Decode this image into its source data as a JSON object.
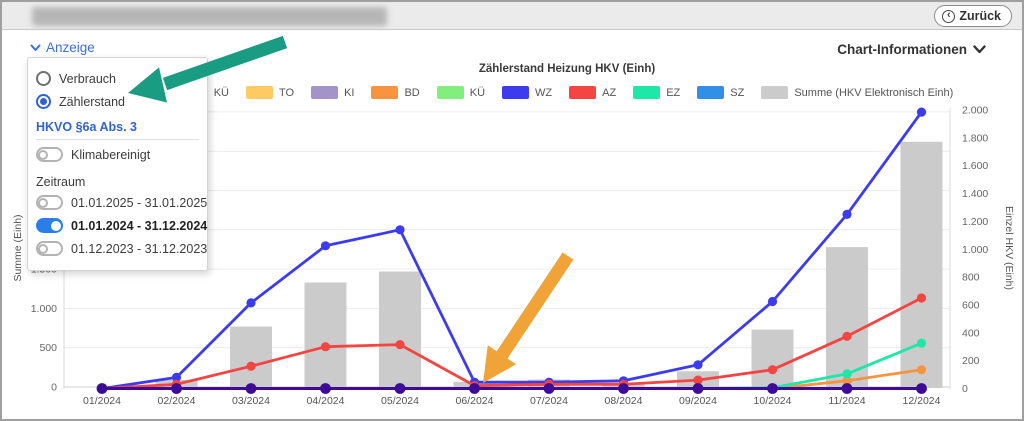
{
  "top_bar": {
    "title_redacted": true,
    "back_label": "Zurück"
  },
  "toolbar": {
    "anzeige_label": "Anzeige",
    "chart_info_label": "Chart-Informationen"
  },
  "anzeige_panel": {
    "radio_options": [
      {
        "label": "Verbrauch",
        "selected": false
      },
      {
        "label": "Zählerstand",
        "selected": true
      }
    ],
    "section_heading": "HKVO §6a Abs. 3",
    "klimabereinigt": {
      "label": "Klimabereinigt",
      "enabled": false
    },
    "zeitraum_label": "Zeitraum",
    "zeitraum_options": [
      {
        "label": "01.01.2025 - 31.01.2025",
        "enabled": false
      },
      {
        "label": "01.01.2024 - 31.12.2024",
        "enabled": true
      },
      {
        "label": "01.12.2023 - 31.12.2023",
        "enabled": false
      }
    ]
  },
  "chart_data": {
    "type": "bar+line",
    "title": "Zählerstand Heizung HKV (Einh)",
    "categories": [
      "01/2024",
      "02/2024",
      "03/2024",
      "04/2024",
      "05/2024",
      "06/2024",
      "07/2024",
      "08/2024",
      "09/2024",
      "10/2024",
      "11/2024",
      "12/2024"
    ],
    "left_axis": {
      "label": "Summe (Einh)",
      "min": 0,
      "max": 3500,
      "tick_step": 500
    },
    "right_axis": {
      "label": "Einzel HKV (Einh)",
      "min": 0,
      "max": 2000,
      "tick_step": 200
    },
    "grid": "horizontal",
    "legend_position": "top",
    "series": [
      {
        "name": "KÜ",
        "type": "line",
        "axis": "right",
        "color": "#29C4F5",
        "values": [
          0,
          0,
          0,
          0,
          0,
          0,
          0,
          0,
          0,
          0,
          0,
          0
        ]
      },
      {
        "name": "TO",
        "type": "line",
        "axis": "right",
        "color": "#FFC964",
        "values": [
          0,
          0,
          0,
          0,
          0,
          0,
          0,
          0,
          0,
          0,
          0,
          0
        ]
      },
      {
        "name": "KI",
        "type": "line",
        "axis": "right",
        "color": "#A393C9",
        "values": [
          0,
          0,
          0,
          0,
          0,
          0,
          0,
          0,
          0,
          0,
          0,
          0
        ]
      },
      {
        "name": "BD",
        "type": "line",
        "axis": "right",
        "color": "#F89440",
        "values": [
          0,
          0,
          0,
          0,
          0,
          0,
          0,
          0,
          0,
          0,
          55,
          135
        ]
      },
      {
        "name": "KÜ",
        "type": "line",
        "axis": "right",
        "color": "#82EE7E",
        "values": [
          0,
          0,
          0,
          0,
          0,
          0,
          0,
          0,
          0,
          0,
          0,
          0
        ]
      },
      {
        "name": "WZ",
        "type": "line",
        "axis": "right",
        "color": "#3D3BEE",
        "values": [
          0,
          80,
          615,
          1025,
          1140,
          45,
          45,
          55,
          170,
          625,
          1250,
          1985
        ]
      },
      {
        "name": "AZ",
        "type": "line",
        "axis": "right",
        "color": "#F54542",
        "values": [
          0,
          30,
          160,
          300,
          315,
          20,
          30,
          30,
          60,
          135,
          375,
          650
        ]
      },
      {
        "name": "EZ",
        "type": "line",
        "axis": "right",
        "color": "#1EE7A8",
        "values": [
          0,
          0,
          0,
          0,
          0,
          0,
          0,
          0,
          0,
          5,
          105,
          325
        ]
      },
      {
        "name": "SZ",
        "type": "line",
        "axis": "right",
        "color": "#318FE8",
        "values": [
          0,
          0,
          0,
          0,
          0,
          0,
          0,
          0,
          0,
          0,
          0,
          0
        ]
      },
      {
        "name": "Summe (HKV Elektronisch Einh)",
        "type": "bar",
        "axis": "left",
        "color": "#CBCBCB",
        "values": [
          0,
          90,
          770,
          1330,
          1470,
          65,
          95,
          50,
          200,
          730,
          1780,
          3120
        ]
      }
    ],
    "zero_overlap_marker_color": "#3D0C97"
  },
  "annotations": {
    "green_arrow": {
      "points_at": "Zählerstand option",
      "color": "#1A9C82"
    },
    "orange_arrow": {
      "points_at": "06/2024 data point",
      "color": "#F0A437"
    }
  }
}
